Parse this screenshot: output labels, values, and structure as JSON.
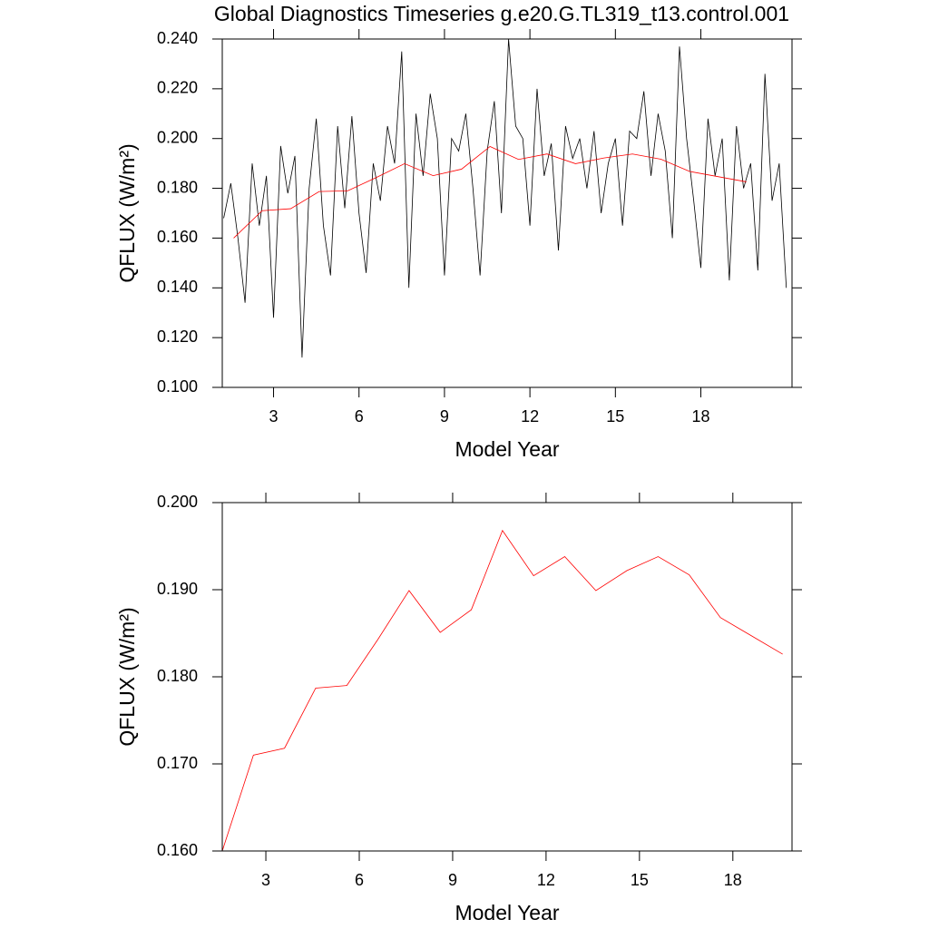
{
  "chart_data": [
    {
      "type": "line",
      "title": "Global Diagnostics Timeseries g.e20.G.TL319_t13.control.001",
      "x_label": "Model Year",
      "y_label": "QFLUX (W/m²)",
      "xlim": [
        1.2,
        21.2
      ],
      "xticks": [
        3,
        6,
        9,
        12,
        15,
        18
      ],
      "ylim": [
        0.1,
        0.24
      ],
      "yticks": [
        {
          "value": 0.1,
          "label": "0.100"
        },
        {
          "value": 0.12,
          "label": "0.120"
        },
        {
          "value": 0.14,
          "label": "0.140"
        },
        {
          "value": 0.16,
          "label": "0.160"
        },
        {
          "value": 0.18,
          "label": "0.180"
        },
        {
          "value": 0.2,
          "label": "0.200"
        },
        {
          "value": 0.22,
          "label": "0.220"
        },
        {
          "value": 0.24,
          "label": "0.240"
        }
      ],
      "series": [
        {
          "color": "#000000",
          "x": [
            1.25,
            1.5,
            1.75,
            2.0,
            2.25,
            2.5,
            2.75,
            3.0,
            3.25,
            3.5,
            3.75,
            4.0,
            4.25,
            4.5,
            4.75,
            5.0,
            5.25,
            5.5,
            5.75,
            6.0,
            6.25,
            6.5,
            6.75,
            7.0,
            7.25,
            7.5,
            7.75,
            8.0,
            8.25,
            8.5,
            8.75,
            9.0,
            9.25,
            9.5,
            9.75,
            10.0,
            10.25,
            10.5,
            10.75,
            11.0,
            11.25,
            11.5,
            11.75,
            12.0,
            12.25,
            12.5,
            12.75,
            13.0,
            13.25,
            13.5,
            13.75,
            14.0,
            14.25,
            14.5,
            14.75,
            15.0,
            15.25,
            15.5,
            15.75,
            16.0,
            16.25,
            16.5,
            16.75,
            17.0,
            17.25,
            17.5,
            17.75,
            18.0,
            18.25,
            18.5,
            18.75,
            19.0,
            19.25,
            19.5,
            19.75,
            20.0,
            20.25,
            20.5,
            20.75,
            21.0
          ],
          "values": [
            0.168,
            0.182,
            0.16,
            0.134,
            0.19,
            0.165,
            0.185,
            0.128,
            0.197,
            0.178,
            0.193,
            0.112,
            0.18,
            0.208,
            0.165,
            0.145,
            0.205,
            0.172,
            0.209,
            0.17,
            0.146,
            0.19,
            0.175,
            0.205,
            0.19,
            0.235,
            0.14,
            0.21,
            0.185,
            0.218,
            0.2,
            0.145,
            0.2,
            0.195,
            0.21,
            0.18,
            0.145,
            0.195,
            0.215,
            0.17,
            0.24,
            0.205,
            0.2,
            0.165,
            0.22,
            0.185,
            0.198,
            0.155,
            0.205,
            0.192,
            0.2,
            0.18,
            0.203,
            0.17,
            0.19,
            0.2,
            0.165,
            0.203,
            0.2,
            0.219,
            0.185,
            0.21,
            0.195,
            0.16,
            0.237,
            0.2,
            0.175,
            0.148,
            0.208,
            0.185,
            0.2,
            0.143,
            0.205,
            0.18,
            0.19,
            0.147,
            0.226,
            0.175,
            0.19,
            0.14
          ]
        },
        {
          "color": "#ff0000",
          "x": [
            1.6,
            2.6,
            3.6,
            4.6,
            5.6,
            6.6,
            7.6,
            8.6,
            9.6,
            10.6,
            11.6,
            12.6,
            13.6,
            14.6,
            15.6,
            16.6,
            17.6,
            18.6,
            19.6
          ],
          "values": [
            0.16,
            0.171,
            0.1718,
            0.1787,
            0.179,
            0.1843,
            0.1899,
            0.1851,
            0.1877,
            0.1968,
            0.1916,
            0.1938,
            0.1899,
            0.1922,
            0.1938,
            0.1917,
            0.1868,
            0.1847,
            0.1826
          ]
        }
      ]
    },
    {
      "type": "line",
      "x_label": "Model Year",
      "y_label": "QFLUX (W/m²)",
      "xlim": [
        1.6,
        19.9
      ],
      "xticks": [
        3,
        6,
        9,
        12,
        15,
        18
      ],
      "ylim": [
        0.16,
        0.2
      ],
      "yticks": [
        {
          "value": 0.16,
          "label": "0.160"
        },
        {
          "value": 0.17,
          "label": "0.170"
        },
        {
          "value": 0.18,
          "label": "0.180"
        },
        {
          "value": 0.19,
          "label": "0.190"
        },
        {
          "value": 0.2,
          "label": "0.200"
        }
      ],
      "series": [
        {
          "color": "#ff0000",
          "x": [
            1.6,
            2.6,
            3.6,
            4.6,
            5.6,
            6.6,
            7.6,
            8.6,
            9.6,
            10.6,
            11.6,
            12.6,
            13.6,
            14.6,
            15.6,
            16.6,
            17.6,
            18.6,
            19.6
          ],
          "values": [
            0.16,
            0.171,
            0.1718,
            0.1787,
            0.179,
            0.1843,
            0.1899,
            0.1851,
            0.1877,
            0.1968,
            0.1916,
            0.1938,
            0.1899,
            0.1922,
            0.1938,
            0.1917,
            0.1868,
            0.1847,
            0.1826
          ]
        }
      ]
    }
  ]
}
